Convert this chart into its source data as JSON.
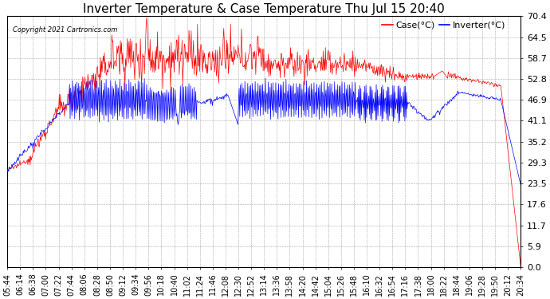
{
  "title": "Inverter Temperature & Case Temperature Thu Jul 15 20:40",
  "copyright": "Copyright 2021 Cartronics.com",
  "legend_case": "Case(°C)",
  "legend_inverter": "Inverter(°C)",
  "case_color": "#ff0000",
  "inverter_color": "#0000ff",
  "yticks": [
    0.0,
    5.9,
    11.7,
    17.6,
    23.5,
    29.3,
    35.2,
    41.1,
    46.9,
    52.8,
    58.7,
    64.5,
    70.4
  ],
  "ymin": 0.0,
  "ymax": 70.4,
  "xtick_labels": [
    "05:44",
    "06:14",
    "06:38",
    "07:00",
    "07:22",
    "07:44",
    "08:06",
    "08:28",
    "08:50",
    "09:12",
    "09:34",
    "09:56",
    "10:18",
    "10:40",
    "11:02",
    "11:24",
    "11:46",
    "12:08",
    "12:30",
    "12:52",
    "13:14",
    "13:36",
    "13:58",
    "14:20",
    "14:42",
    "15:04",
    "15:26",
    "15:48",
    "16:10",
    "16:32",
    "16:54",
    "17:16",
    "17:38",
    "18:00",
    "18:22",
    "18:44",
    "19:06",
    "19:28",
    "19:50",
    "20:12",
    "20:34"
  ],
  "bg_color": "#ffffff",
  "grid_color": "#aaaaaa",
  "title_fontsize": 11,
  "axis_fontsize": 7,
  "legend_fontsize": 8,
  "copyright_fontsize": 6
}
